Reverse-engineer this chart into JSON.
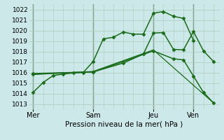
{
  "background_color": "#cce8e8",
  "grid_color": "#aaccbb",
  "line_color": "#1a6b1a",
  "xlabel": "Pression niveau de la mer( hPa )",
  "ylim": [
    1012.5,
    1022.5
  ],
  "yticks": [
    1013,
    1014,
    1015,
    1016,
    1017,
    1018,
    1019,
    1020,
    1021,
    1022
  ],
  "xlim": [
    -0.2,
    9.3
  ],
  "x_tick_labels": [
    "Mer",
    "Sam",
    "Jeu",
    "Ven"
  ],
  "x_tick_positions": [
    0,
    3,
    6,
    8
  ],
  "x_vlines": [
    0,
    3,
    6,
    8
  ],
  "series": [
    {
      "x": [
        0,
        0.5,
        1.0,
        1.5,
        2.0,
        2.5,
        3.0,
        3.5,
        4.0,
        4.5,
        5.0,
        5.5,
        6.0,
        6.5,
        7.0,
        7.5,
        8.0
      ],
      "y": [
        1014.1,
        1015.05,
        1015.7,
        1015.85,
        1015.95,
        1016.0,
        1017.05,
        1019.2,
        1019.35,
        1019.85,
        1019.65,
        1019.65,
        1021.65,
        1021.8,
        1021.35,
        1021.15,
        1019.05
      ],
      "marker": "D",
      "markersize": 2.5,
      "linewidth": 1.1
    },
    {
      "x": [
        0,
        3,
        4.5,
        5.5,
        6.0,
        6.5,
        7.0,
        7.5,
        8.0,
        8.5,
        9.0
      ],
      "y": [
        1015.9,
        1016.05,
        1016.9,
        1017.75,
        1019.75,
        1019.8,
        1018.2,
        1018.15,
        1019.9,
        1018.05,
        1017.05
      ],
      "marker": "D",
      "markersize": 2.5,
      "linewidth": 1.1
    },
    {
      "x": [
        0,
        3,
        6,
        7.0,
        7.5,
        8.0,
        8.5,
        9.0
      ],
      "y": [
        1015.85,
        1016.05,
        1018.05,
        1017.3,
        1017.2,
        1015.65,
        1014.1,
        1013.1
      ],
      "marker": "D",
      "markersize": 2.5,
      "linewidth": 1.1
    },
    {
      "x": [
        0,
        3,
        6,
        9.0
      ],
      "y": [
        1015.8,
        1016.1,
        1018.15,
        1013.1
      ],
      "marker": null,
      "markersize": 0,
      "linewidth": 0.9
    }
  ]
}
